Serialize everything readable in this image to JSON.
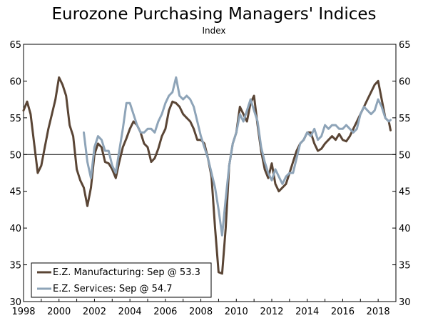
{
  "chart_data": {
    "type": "line",
    "title": "Eurozone Purchasing Managers' Indices",
    "subtitle": "Index",
    "xlabel": "",
    "ylabel": "",
    "xlim": [
      1998,
      2019
    ],
    "ylim": [
      30,
      65
    ],
    "x_ticks": [
      1998,
      2000,
      2002,
      2004,
      2006,
      2008,
      2010,
      2012,
      2014,
      2016,
      2018
    ],
    "y_ticks": [
      30,
      35,
      40,
      45,
      50,
      55,
      60,
      65
    ],
    "reference_line": 50,
    "legend_position": "bottom-left",
    "series": [
      {
        "name": "E.Z. Manufacturing: Sep @ 53.3",
        "color": "#5a4535",
        "x": [
          1998.0,
          1998.2,
          1998.4,
          1998.6,
          1998.8,
          1999.0,
          1999.2,
          1999.4,
          1999.6,
          1999.8,
          2000.0,
          2000.2,
          2000.4,
          2000.6,
          2000.8,
          2001.0,
          2001.2,
          2001.4,
          2001.6,
          2001.8,
          2002.0,
          2002.2,
          2002.4,
          2002.6,
          2002.8,
          2003.0,
          2003.2,
          2003.4,
          2003.6,
          2003.8,
          2004.0,
          2004.2,
          2004.4,
          2004.6,
          2004.8,
          2005.0,
          2005.2,
          2005.4,
          2005.6,
          2005.8,
          2006.0,
          2006.2,
          2006.4,
          2006.6,
          2006.8,
          2007.0,
          2007.2,
          2007.4,
          2007.6,
          2007.8,
          2008.0,
          2008.2,
          2008.4,
          2008.6,
          2008.8,
          2009.0,
          2009.2,
          2009.4,
          2009.6,
          2009.8,
          2010.0,
          2010.2,
          2010.4,
          2010.6,
          2010.8,
          2011.0,
          2011.2,
          2011.4,
          2011.6,
          2011.8,
          2012.0,
          2012.2,
          2012.4,
          2012.6,
          2012.8,
          2013.0,
          2013.2,
          2013.4,
          2013.6,
          2013.8,
          2014.0,
          2014.2,
          2014.4,
          2014.6,
          2014.8,
          2015.0,
          2015.2,
          2015.4,
          2015.6,
          2015.8,
          2016.0,
          2016.2,
          2016.4,
          2016.6,
          2016.8,
          2017.0,
          2017.2,
          2017.4,
          2017.6,
          2017.8,
          2018.0,
          2018.2,
          2018.4,
          2018.6,
          2018.7
        ],
        "values": [
          56.0,
          57.2,
          55.5,
          51.5,
          47.5,
          48.5,
          51.0,
          53.5,
          55.5,
          57.5,
          60.5,
          59.5,
          58.0,
          54.0,
          52.5,
          48.0,
          46.5,
          45.5,
          43.0,
          45.5,
          50.0,
          51.5,
          51.0,
          49.0,
          48.8,
          48.0,
          46.8,
          49.0,
          51.0,
          52.2,
          53.5,
          54.5,
          54.0,
          53.0,
          51.5,
          51.0,
          49.0,
          49.5,
          50.8,
          52.5,
          53.5,
          56.0,
          57.2,
          57.0,
          56.5,
          55.5,
          55.0,
          54.5,
          53.5,
          52.0,
          52.0,
          51.5,
          49.5,
          47.0,
          40.0,
          34.0,
          33.8,
          40.0,
          48.5,
          51.5,
          53.0,
          56.5,
          55.5,
          54.5,
          57.0,
          58.0,
          54.0,
          50.5,
          48.0,
          46.8,
          48.8,
          46.0,
          45.0,
          45.5,
          46.0,
          47.5,
          49.0,
          50.5,
          51.5,
          52.0,
          53.0,
          53.0,
          51.5,
          50.5,
          50.8,
          51.5,
          52.0,
          52.5,
          52.0,
          52.8,
          52.0,
          51.8,
          52.5,
          53.5,
          54.5,
          55.5,
          56.5,
          57.5,
          58.5,
          59.5,
          60.0,
          57.5,
          55.0,
          54.5,
          53.3
        ],
        "last_label": "Sep @ 53.3"
      },
      {
        "name": "E.Z. Services: Sep @ 54.7",
        "color": "#8ea4b8",
        "x": [
          2001.4,
          2001.6,
          2001.8,
          2002.0,
          2002.2,
          2002.4,
          2002.6,
          2002.8,
          2003.0,
          2003.2,
          2003.4,
          2003.6,
          2003.8,
          2004.0,
          2004.2,
          2004.4,
          2004.6,
          2004.8,
          2005.0,
          2005.2,
          2005.4,
          2005.6,
          2005.8,
          2006.0,
          2006.2,
          2006.4,
          2006.6,
          2006.8,
          2007.0,
          2007.2,
          2007.4,
          2007.6,
          2007.8,
          2008.0,
          2008.2,
          2008.4,
          2008.6,
          2008.8,
          2009.0,
          2009.2,
          2009.4,
          2009.6,
          2009.8,
          2010.0,
          2010.2,
          2010.4,
          2010.6,
          2010.8,
          2011.0,
          2011.2,
          2011.4,
          2011.6,
          2011.8,
          2012.0,
          2012.2,
          2012.4,
          2012.6,
          2012.8,
          2013.0,
          2013.2,
          2013.4,
          2013.6,
          2013.8,
          2014.0,
          2014.2,
          2014.4,
          2014.6,
          2014.8,
          2015.0,
          2015.2,
          2015.4,
          2015.6,
          2015.8,
          2016.0,
          2016.2,
          2016.4,
          2016.6,
          2016.8,
          2017.0,
          2017.2,
          2017.4,
          2017.6,
          2017.8,
          2018.0,
          2018.2,
          2018.4,
          2018.6,
          2018.7
        ],
        "values": [
          53.0,
          49.0,
          46.8,
          51.0,
          52.5,
          52.0,
          50.5,
          50.5,
          48.5,
          47.5,
          50.5,
          53.5,
          57.0,
          57.0,
          55.5,
          54.0,
          53.0,
          53.0,
          53.5,
          53.5,
          53.0,
          54.5,
          55.5,
          57.0,
          58.0,
          58.5,
          60.5,
          58.0,
          57.5,
          58.0,
          57.5,
          56.5,
          54.5,
          52.5,
          51.0,
          49.5,
          47.5,
          45.5,
          42.5,
          39.0,
          44.0,
          48.5,
          51.5,
          53.0,
          55.5,
          54.5,
          56.0,
          57.5,
          56.0,
          54.5,
          51.0,
          49.0,
          47.5,
          46.5,
          48.0,
          47.0,
          46.0,
          47.0,
          47.5,
          47.5,
          49.5,
          51.5,
          52.0,
          53.0,
          52.5,
          53.5,
          52.0,
          52.5,
          54.0,
          53.5,
          54.0,
          54.0,
          53.5,
          53.5,
          54.0,
          53.5,
          53.0,
          53.5,
          55.5,
          56.5,
          56.0,
          55.5,
          56.0,
          57.5,
          56.5,
          55.0,
          54.5,
          54.7
        ],
        "last_label": "Sep @ 54.7"
      }
    ]
  }
}
